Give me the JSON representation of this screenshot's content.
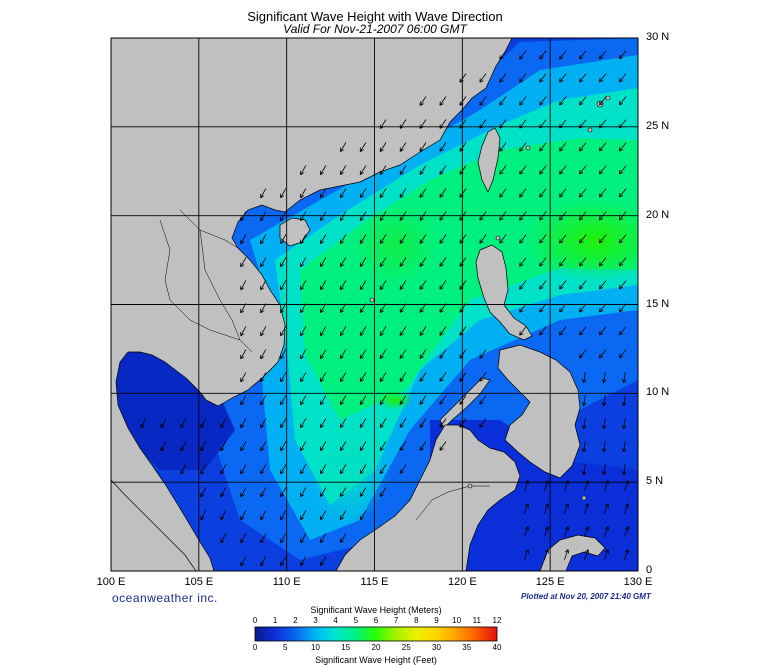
{
  "title": "Significant Wave Height with Wave Direction",
  "subtitle": "Valid For Nov-21-2007 06:00 GMT",
  "lat_labels": [
    "30 N",
    "25 N",
    "20 N",
    "15 N",
    "10 N",
    "5 N",
    "0"
  ],
  "lon_labels": [
    "100 E",
    "105 E",
    "110 E",
    "115 E",
    "120 E",
    "125 E",
    "130 E"
  ],
  "brand": "oceanweather inc.",
  "plotted": "Plotted at Nov 20, 2007 21:40 GMT",
  "colorbar": {
    "meters_title": "Significant Wave Height (Meters)",
    "feet_title": "Significant Wave Height (Feet)",
    "meters_ticks": [
      "0",
      "1",
      "2",
      "3",
      "4",
      "5",
      "6",
      "7",
      "8",
      "9",
      "10",
      "11",
      "12"
    ],
    "feet_ticks": [
      "0",
      "5",
      "10",
      "15",
      "20",
      "25",
      "30",
      "35",
      "40"
    ],
    "colors": [
      "#0a1a8c",
      "#0b2ed8",
      "#0a66f0",
      "#00b6f5",
      "#00e6d0",
      "#00f080",
      "#2cff00",
      "#a6f000",
      "#eaf000",
      "#ffd400",
      "#ffa000",
      "#ff5a00",
      "#e01010"
    ]
  },
  "colors": {
    "land": "#c0c0c0",
    "coast": "#000000",
    "grid": "#000000",
    "arrows": "#000000"
  }
}
